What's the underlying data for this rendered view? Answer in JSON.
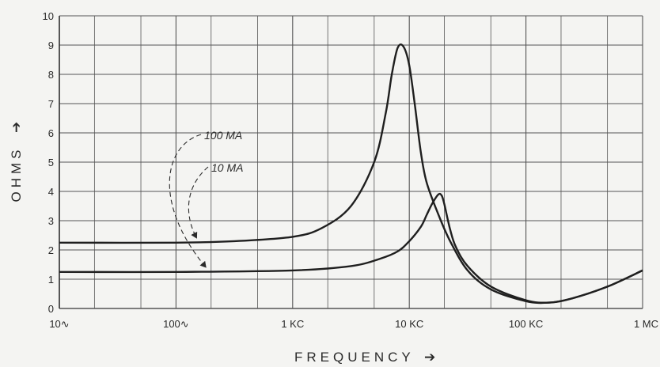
{
  "chart_data": {
    "type": "line",
    "title": "",
    "xlabel": "FREQUENCY",
    "xlabel_arrow": "➔",
    "ylabel": "OHMS",
    "ylabel_arrow": "➔",
    "x_scale": "log",
    "xlim": [
      10,
      1000000
    ],
    "ylim": [
      0,
      10
    ],
    "grid": true,
    "x_ticks": [
      {
        "value": 10,
        "label": "10∿"
      },
      {
        "value": 100,
        "label": "100∿"
      },
      {
        "value": 1000,
        "label": "1 KC"
      },
      {
        "value": 10000,
        "label": "10 KC"
      },
      {
        "value": 100000,
        "label": "100 KC"
      },
      {
        "value": 1000000,
        "label": "1 MC"
      }
    ],
    "y_ticks": [
      0,
      1,
      2,
      3,
      4,
      5,
      6,
      7,
      8,
      9,
      10
    ],
    "series": [
      {
        "name": "100 MA",
        "x": [
          10,
          100,
          316,
          1000,
          1780,
          3160,
          5000,
          6300,
          7080,
          7940,
          8910,
          10000,
          11200,
          12600,
          14100,
          17800,
          22400,
          31600,
          50100,
          100000,
          158000,
          251000,
          501000,
          1000000
        ],
        "y": [
          2.25,
          2.25,
          2.3,
          2.45,
          2.75,
          3.5,
          5.0,
          6.7,
          8.0,
          8.9,
          8.95,
          8.3,
          6.9,
          5.3,
          4.3,
          3.2,
          2.3,
          1.3,
          0.65,
          0.25,
          0.2,
          0.35,
          0.75,
          1.3
        ]
      },
      {
        "name": "10 MA",
        "x": [
          10,
          100,
          1000,
          3160,
          5620,
          7940,
          10000,
          12600,
          14100,
          15800,
          17800,
          19000,
          20000,
          22400,
          25100,
          31600,
          50100,
          100000,
          158000,
          251000,
          501000,
          1000000
        ],
        "y": [
          1.25,
          1.25,
          1.3,
          1.45,
          1.7,
          1.95,
          2.3,
          2.8,
          3.2,
          3.6,
          3.9,
          3.85,
          3.55,
          2.7,
          2.1,
          1.45,
          0.75,
          0.28,
          0.2,
          0.35,
          0.75,
          1.3
        ]
      }
    ],
    "annotations": [
      {
        "text": "100 MA",
        "series": "100 MA"
      },
      {
        "text": "10 MA",
        "series": "10 MA"
      }
    ]
  }
}
